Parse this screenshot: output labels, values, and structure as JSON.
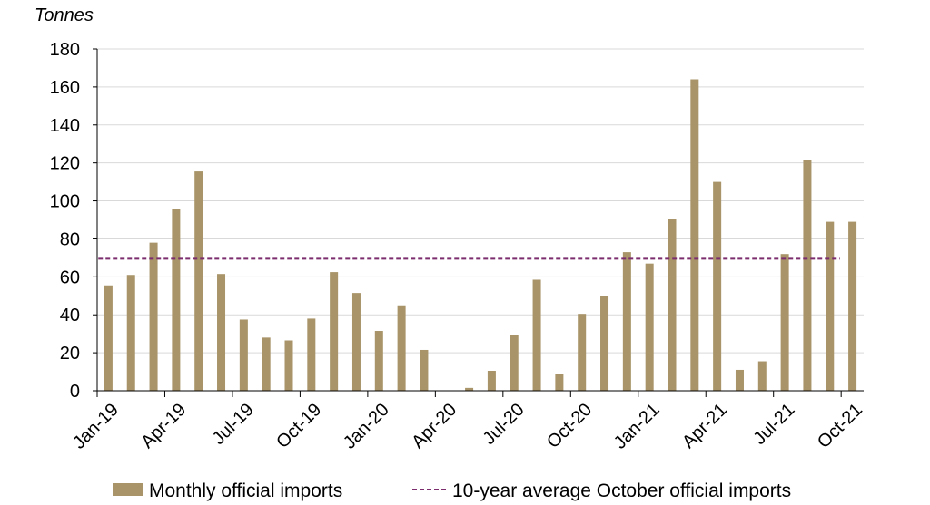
{
  "chart_data": {
    "type": "bar",
    "unit_label": "Tonnes",
    "ylim": [
      0,
      180
    ],
    "yticks": [
      0,
      20,
      40,
      60,
      80,
      100,
      120,
      140,
      160,
      180
    ],
    "grid": "horizontal",
    "legend_position": "bottom",
    "x_tick_labels": [
      "Jan-19",
      "Apr-19",
      "Jul-19",
      "Oct-19",
      "Jan-20",
      "Apr-20",
      "Jul-20",
      "Oct-20",
      "Jan-21",
      "Apr-21",
      "Jul-21",
      "Oct-21"
    ],
    "categories": [
      "Jan-19",
      "Feb-19",
      "Mar-19",
      "Apr-19",
      "May-19",
      "Jun-19",
      "Jul-19",
      "Aug-19",
      "Sep-19",
      "Oct-19",
      "Nov-19",
      "Dec-19",
      "Jan-20",
      "Feb-20",
      "Mar-20",
      "Apr-20",
      "May-20",
      "Jun-20",
      "Jul-20",
      "Aug-20",
      "Sep-20",
      "Oct-20",
      "Nov-20",
      "Dec-20",
      "Jan-21",
      "Feb-21",
      "Mar-21",
      "Apr-21",
      "May-21",
      "Jun-21",
      "Jul-21",
      "Aug-21",
      "Sep-21",
      "Oct-21"
    ],
    "series": [
      {
        "name": "Monthly official imports",
        "color": "#A89468",
        "values": [
          55.5,
          61,
          78,
          95.5,
          115.5,
          61.5,
          37.5,
          28,
          26.5,
          38,
          62.5,
          51.5,
          31.5,
          45,
          21.5,
          0,
          1.5,
          10.5,
          29.5,
          58.5,
          9,
          40.5,
          50,
          73,
          67,
          90.5,
          164,
          110,
          11,
          15.5,
          72,
          121.5,
          89,
          89
        ]
      }
    ],
    "reference_line": {
      "name": "10-year average October official imports",
      "value": 69.5,
      "color": "#7B2D6E",
      "style": "dashed",
      "x_start": "Jan-19",
      "x_end": "Sep-21"
    }
  }
}
